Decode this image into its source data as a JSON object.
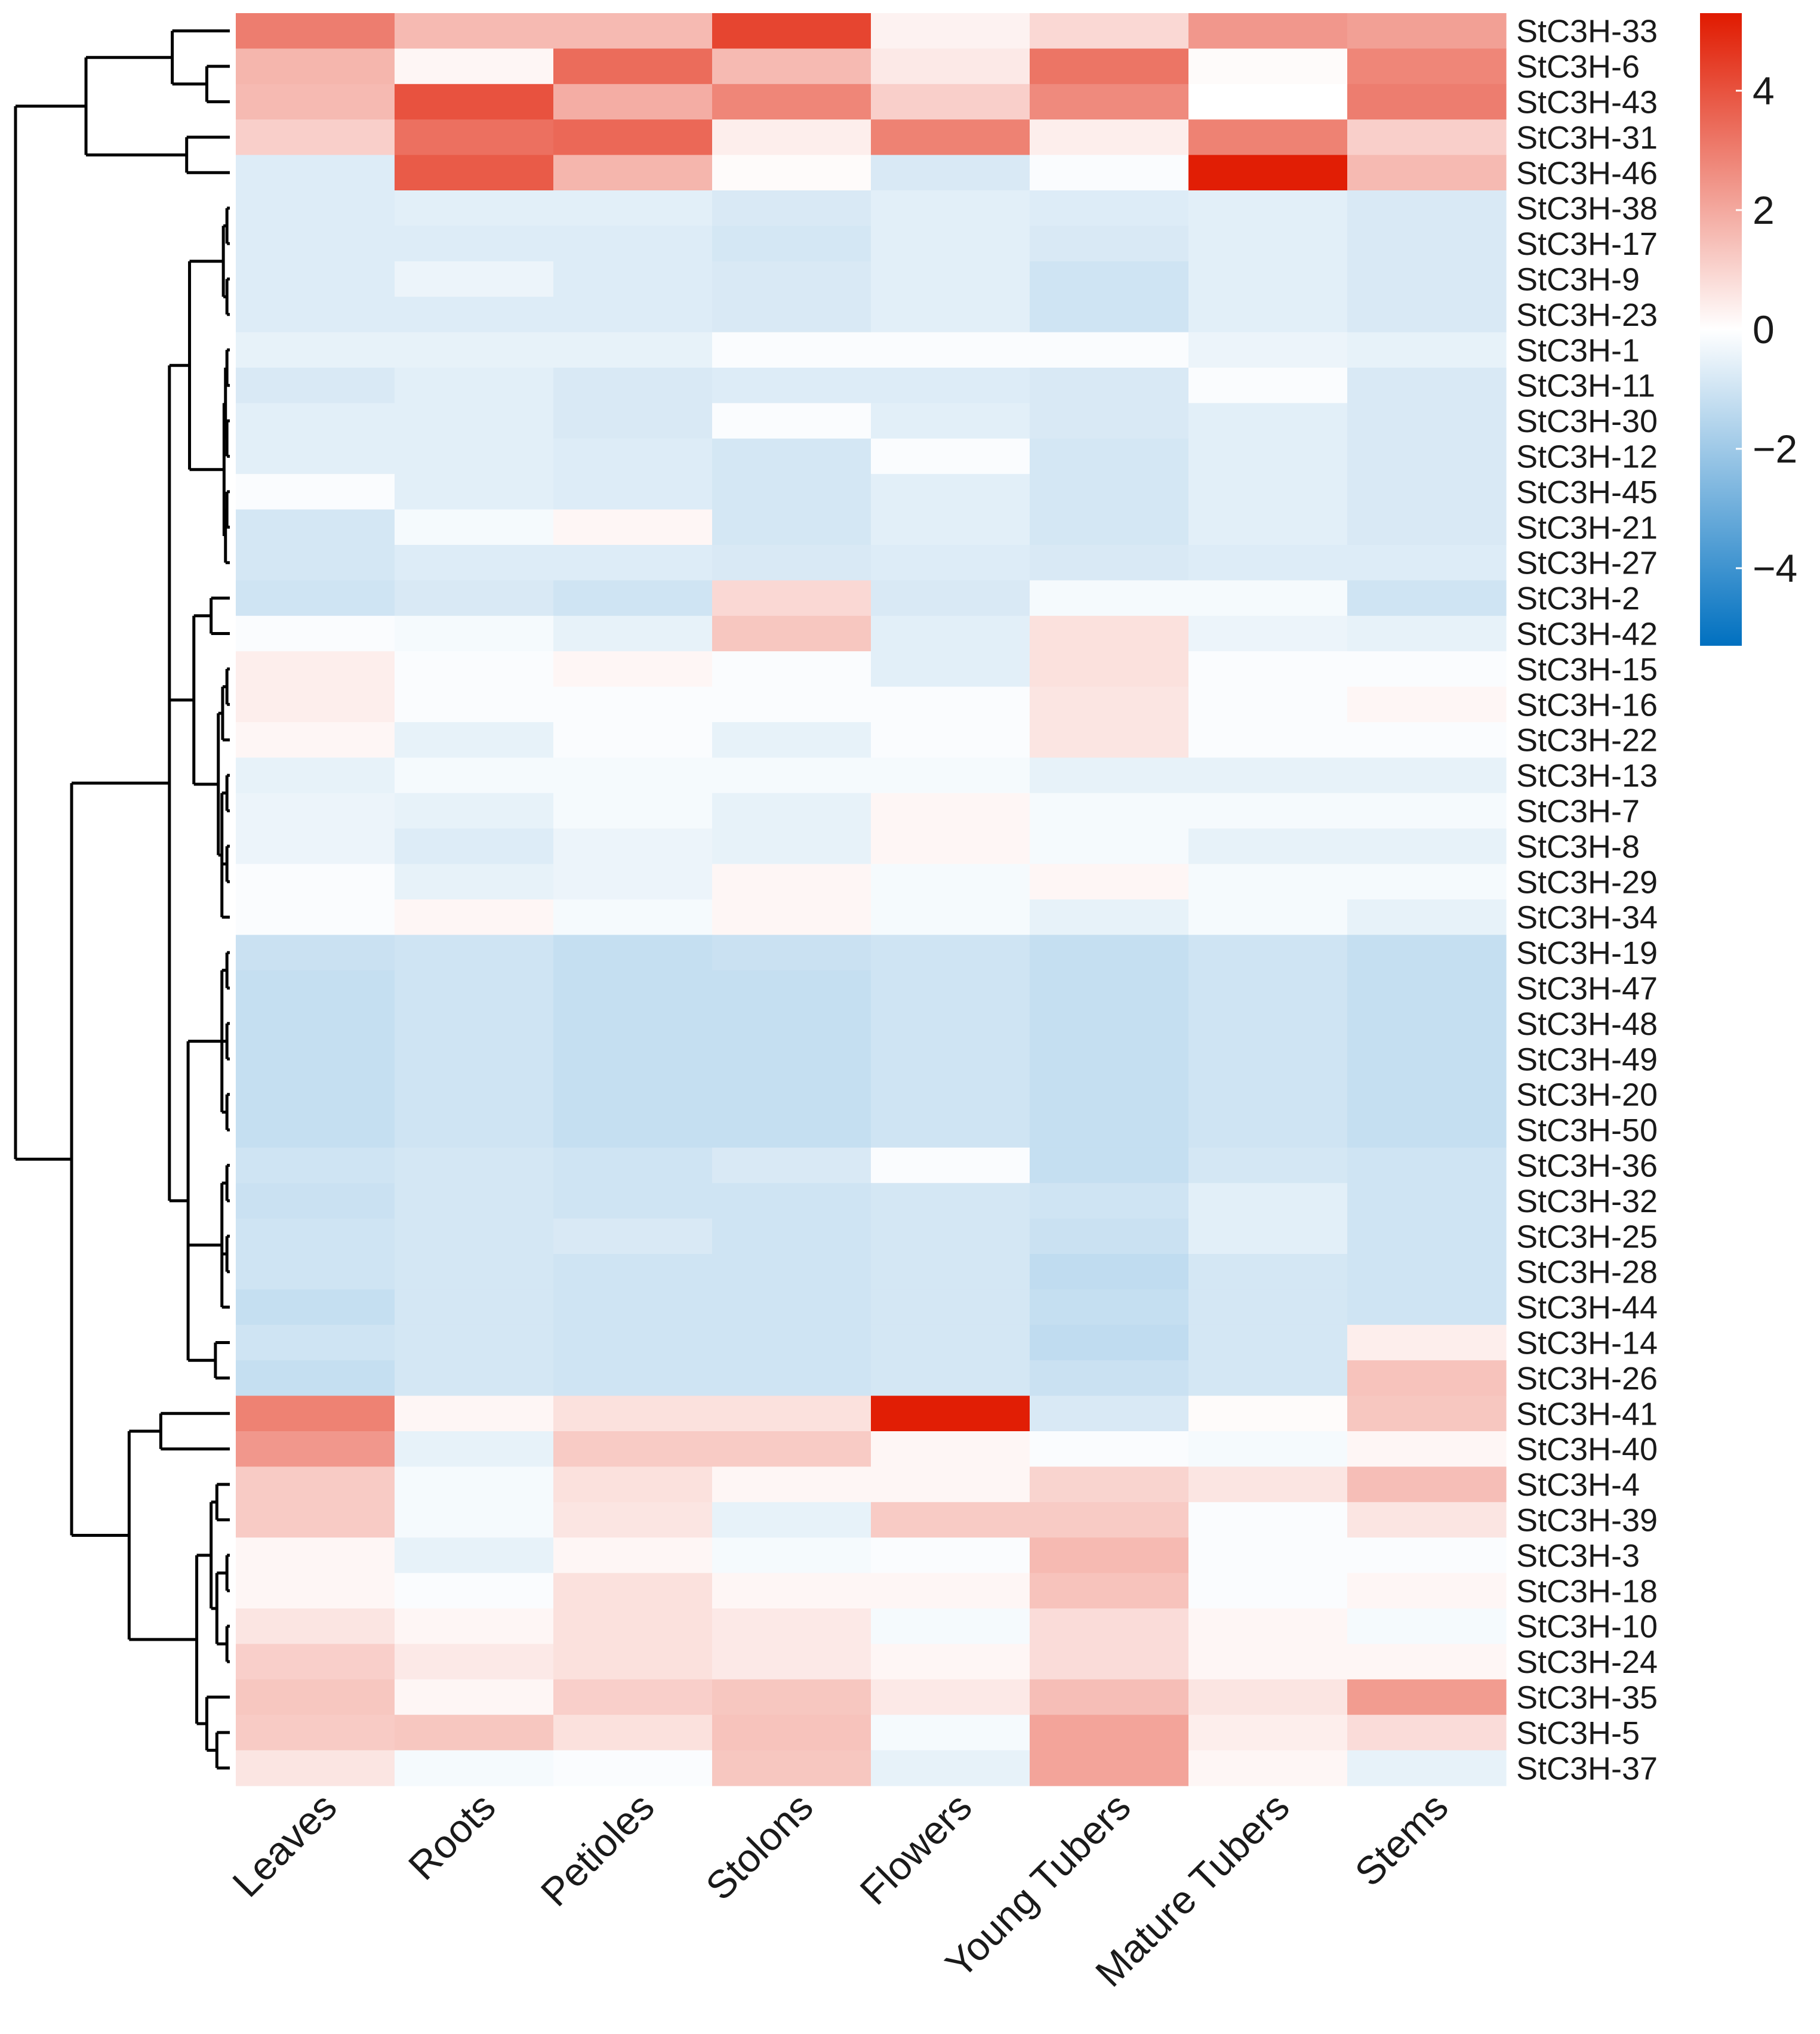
{
  "chart_data": {
    "type": "heatmap",
    "title": "",
    "xlabel": "",
    "ylabel": "",
    "columns": [
      "Leaves",
      "Roots",
      "Petioles",
      "Stolons",
      "Flowers",
      "Young Tubers",
      "Mature Tubers",
      "Stems"
    ],
    "rows": [
      "StC3H-33",
      "StC3H-6",
      "StC3H-43",
      "StC3H-31",
      "StC3H-46",
      "StC3H-38",
      "StC3H-17",
      "StC3H-9",
      "StC3H-23",
      "StC3H-1",
      "StC3H-11",
      "StC3H-30",
      "StC3H-12",
      "StC3H-45",
      "StC3H-21",
      "StC3H-27",
      "StC3H-2",
      "StC3H-42",
      "StC3H-15",
      "StC3H-16",
      "StC3H-22",
      "StC3H-13",
      "StC3H-7",
      "StC3H-8",
      "StC3H-29",
      "StC3H-34",
      "StC3H-19",
      "StC3H-47",
      "StC3H-48",
      "StC3H-49",
      "StC3H-20",
      "StC3H-50",
      "StC3H-36",
      "StC3H-32",
      "StC3H-25",
      "StC3H-28",
      "StC3H-44",
      "StC3H-14",
      "StC3H-26",
      "StC3H-41",
      "StC3H-40",
      "StC3H-4",
      "StC3H-39",
      "StC3H-3",
      "StC3H-18",
      "StC3H-10",
      "StC3H-24",
      "StC3H-35",
      "StC3H-5",
      "StC3H-37"
    ],
    "values": [
      [
        3.0,
        1.6,
        1.6,
        4.3,
        0.3,
        0.9,
        2.4,
        2.2
      ],
      [
        1.7,
        0.2,
        3.4,
        1.6,
        0.5,
        3.2,
        0.1,
        2.8
      ],
      [
        1.6,
        4.0,
        1.9,
        2.8,
        1.1,
        2.7,
        0.0,
        3.0
      ],
      [
        1.1,
        3.3,
        3.5,
        0.4,
        2.9,
        0.4,
        2.9,
        1.1
      ],
      [
        -0.7,
        3.8,
        1.7,
        0.1,
        -0.8,
        -0.1,
        5.2,
        1.6
      ],
      [
        -0.7,
        -0.6,
        -0.6,
        -0.8,
        -0.6,
        -0.7,
        -0.6,
        -0.8
      ],
      [
        -0.7,
        -0.7,
        -0.7,
        -0.9,
        -0.6,
        -0.8,
        -0.6,
        -0.8
      ],
      [
        -0.7,
        -0.4,
        -0.7,
        -0.8,
        -0.6,
        -1.0,
        -0.6,
        -0.8
      ],
      [
        -0.7,
        -0.7,
        -0.7,
        -0.8,
        -0.6,
        -1.0,
        -0.6,
        -0.8
      ],
      [
        -0.5,
        -0.5,
        -0.5,
        -0.1,
        -0.1,
        -0.1,
        -0.4,
        -0.5
      ],
      [
        -0.8,
        -0.6,
        -0.8,
        -0.7,
        -0.7,
        -0.8,
        -0.1,
        -0.8
      ],
      [
        -0.6,
        -0.6,
        -0.8,
        -0.1,
        -0.6,
        -0.8,
        -0.6,
        -0.8
      ],
      [
        -0.6,
        -0.6,
        -0.7,
        -0.9,
        -0.1,
        -0.9,
        -0.6,
        -0.8
      ],
      [
        -0.1,
        -0.6,
        -0.7,
        -0.9,
        -0.6,
        -0.9,
        -0.6,
        -0.8
      ],
      [
        -0.9,
        -0.2,
        0.2,
        -0.9,
        -0.6,
        -0.9,
        -0.6,
        -0.8
      ],
      [
        -0.9,
        -0.7,
        -0.7,
        -0.8,
        -0.7,
        -0.8,
        -0.7,
        -0.7
      ],
      [
        -1.0,
        -0.8,
        -1.0,
        0.9,
        -0.8,
        -0.2,
        -0.2,
        -1.0
      ],
      [
        -0.1,
        -0.2,
        -0.5,
        1.3,
        -0.6,
        0.7,
        -0.4,
        -0.5
      ],
      [
        0.4,
        -0.1,
        0.2,
        -0.1,
        -0.6,
        0.7,
        -0.1,
        -0.1
      ],
      [
        0.4,
        -0.1,
        -0.1,
        -0.1,
        -0.1,
        0.6,
        -0.1,
        0.2
      ],
      [
        0.2,
        -0.5,
        -0.1,
        -0.5,
        -0.1,
        0.6,
        -0.1,
        -0.1
      ],
      [
        -0.5,
        -0.2,
        -0.2,
        -0.2,
        -0.2,
        -0.5,
        -0.5,
        -0.5
      ],
      [
        -0.4,
        -0.5,
        -0.2,
        -0.5,
        0.2,
        -0.2,
        -0.2,
        -0.2
      ],
      [
        -0.4,
        -0.7,
        -0.4,
        -0.5,
        0.2,
        -0.2,
        -0.5,
        -0.5
      ],
      [
        -0.1,
        -0.5,
        -0.4,
        0.2,
        -0.2,
        0.2,
        -0.2,
        -0.2
      ],
      [
        -0.1,
        0.2,
        -0.2,
        0.2,
        -0.2,
        -0.5,
        -0.2,
        -0.5
      ],
      [
        -1.1,
        -1.0,
        -1.2,
        -1.1,
        -1.0,
        -1.2,
        -1.0,
        -1.2
      ],
      [
        -1.2,
        -1.0,
        -1.2,
        -1.2,
        -1.0,
        -1.2,
        -1.0,
        -1.2
      ],
      [
        -1.2,
        -1.0,
        -1.2,
        -1.2,
        -1.0,
        -1.2,
        -1.0,
        -1.2
      ],
      [
        -1.2,
        -1.0,
        -1.2,
        -1.2,
        -1.0,
        -1.2,
        -1.0,
        -1.2
      ],
      [
        -1.2,
        -1.0,
        -1.2,
        -1.2,
        -1.0,
        -1.2,
        -1.0,
        -1.2
      ],
      [
        -1.2,
        -1.0,
        -1.2,
        -1.2,
        -1.0,
        -1.2,
        -1.0,
        -1.2
      ],
      [
        -1.0,
        -0.9,
        -1.0,
        -0.8,
        -0.1,
        -1.2,
        -0.9,
        -1.0
      ],
      [
        -1.1,
        -0.9,
        -1.0,
        -1.0,
        -0.9,
        -1.0,
        -0.6,
        -1.0
      ],
      [
        -1.0,
        -0.9,
        -0.8,
        -1.0,
        -0.9,
        -1.1,
        -0.6,
        -1.0
      ],
      [
        -1.0,
        -0.9,
        -1.0,
        -1.0,
        -0.9,
        -1.3,
        -0.9,
        -1.0
      ],
      [
        -1.2,
        -0.9,
        -1.0,
        -1.0,
        -0.9,
        -1.2,
        -0.9,
        -1.0
      ],
      [
        -1.0,
        -0.9,
        -1.0,
        -1.0,
        -0.9,
        -1.3,
        -0.9,
        0.4
      ],
      [
        -1.2,
        -0.9,
        -1.0,
        -1.0,
        -0.9,
        -1.1,
        -0.9,
        1.4
      ],
      [
        2.9,
        0.2,
        0.7,
        0.7,
        5.2,
        -0.8,
        0.1,
        1.3
      ],
      [
        2.4,
        -0.5,
        1.2,
        1.2,
        0.2,
        -0.1,
        -0.2,
        0.2
      ],
      [
        1.2,
        -0.2,
        0.7,
        0.2,
        0.2,
        1.0,
        0.6,
        1.5
      ],
      [
        1.2,
        -0.2,
        0.6,
        -0.5,
        1.2,
        1.2,
        -0.1,
        0.6
      ],
      [
        0.2,
        -0.5,
        0.2,
        -0.2,
        -0.1,
        1.6,
        -0.1,
        -0.1
      ],
      [
        0.2,
        -0.1,
        0.7,
        0.2,
        0.2,
        1.4,
        -0.1,
        0.2
      ],
      [
        0.6,
        0.2,
        0.7,
        0.5,
        -0.2,
        0.8,
        0.2,
        -0.2
      ],
      [
        1.1,
        0.5,
        0.7,
        0.5,
        0.2,
        0.8,
        0.2,
        0.2
      ],
      [
        1.3,
        0.2,
        1.1,
        1.3,
        0.5,
        1.5,
        0.6,
        2.3
      ],
      [
        1.2,
        1.3,
        0.7,
        1.4,
        -0.2,
        2.1,
        0.4,
        0.8
      ],
      [
        0.6,
        -0.2,
        -0.1,
        1.3,
        -0.5,
        2.1,
        0.2,
        -0.5
      ]
    ],
    "color_scale": {
      "min": -5.3,
      "max": 5.3,
      "low_color": "#0070c0",
      "mid_color": "#ffffff",
      "high_color": "#e01a00",
      "ticks": [
        4,
        2,
        0,
        -2,
        -4
      ],
      "tick_labels": [
        "4",
        "2",
        "0",
        "−2",
        "−4"
      ]
    },
    "legend_position": "top-right",
    "row_dendrogram": true,
    "grid": false
  }
}
